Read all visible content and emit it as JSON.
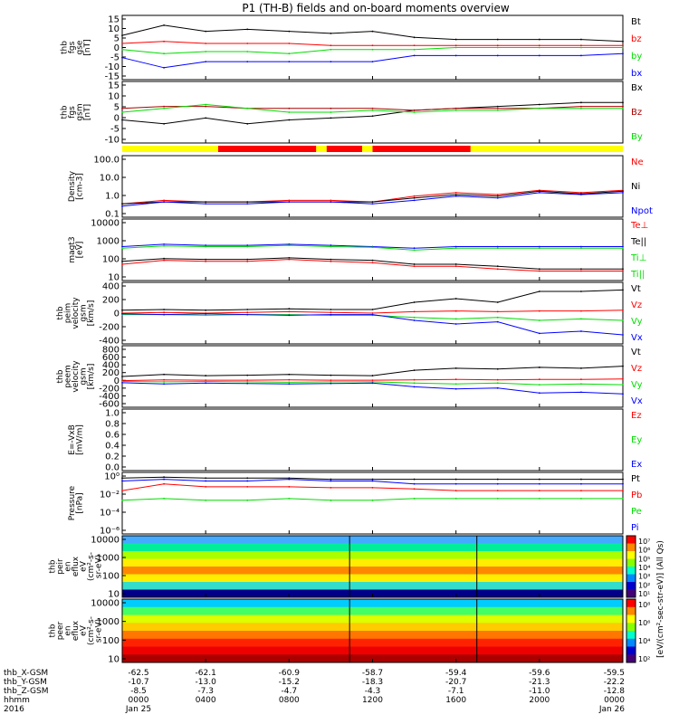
{
  "title": "P1 (TH-B) fields and on-board moments overview",
  "colors": {
    "black": "#000000",
    "red": "#ff0000",
    "green": "#00dd00",
    "blue": "#0000ff",
    "darkred": "#aa0000",
    "yellow": "#ffff00"
  },
  "chart_data": [
    {
      "type": "line",
      "id": "fgs_gse",
      "ylabel_lines": [
        "thb",
        "fgs",
        "gse",
        "[nT]"
      ],
      "yticks": [
        "15",
        "10",
        "5",
        "0",
        "-5",
        "-10",
        "-15"
      ],
      "ylim": [
        -15,
        15
      ],
      "legend": [
        {
          "label": "Bt",
          "color": "black"
        },
        {
          "label": "bz",
          "color": "red"
        },
        {
          "label": "by",
          "color": "green"
        },
        {
          "label": "bx",
          "color": "blue"
        }
      ],
      "x": [
        0,
        2,
        4,
        6,
        8,
        10,
        12,
        14,
        16,
        18,
        20,
        22,
        24
      ],
      "series": [
        {
          "color": "black",
          "values": [
            6,
            11,
            8,
            9,
            8,
            7,
            8,
            5,
            4,
            4,
            4,
            4,
            3
          ]
        },
        {
          "color": "red",
          "values": [
            2,
            3,
            2,
            2,
            2,
            1,
            1,
            1,
            1,
            1,
            1,
            1,
            1
          ]
        },
        {
          "color": "green",
          "values": [
            -1,
            -3,
            -2,
            -2,
            -3,
            -1,
            -1,
            -1,
            0,
            0,
            0,
            0,
            0
          ]
        },
        {
          "color": "blue",
          "values": [
            -5,
            -10,
            -7,
            -7,
            -7,
            -7,
            -7,
            -4,
            -4,
            -4,
            -4,
            -4,
            -3
          ]
        }
      ]
    },
    {
      "type": "line",
      "id": "fgs_gsm",
      "ylabel_lines": [
        "thb",
        "fgs",
        "gsm",
        "[nT]"
      ],
      "yticks": [
        "15",
        "10",
        "5",
        "0",
        "-5",
        "-10"
      ],
      "ylim": [
        -15,
        15
      ],
      "legend": [
        {
          "label": "Bx",
          "color": "black"
        },
        {
          "label": "Bz",
          "color": "darkred"
        },
        {
          "label": "By",
          "color": "green"
        }
      ],
      "x": [
        0,
        2,
        4,
        6,
        8,
        10,
        12,
        14,
        16,
        18,
        20,
        22,
        24
      ],
      "series": [
        {
          "color": "black",
          "values": [
            -4,
            -6,
            -3,
            -6,
            -4,
            -3,
            -2,
            1,
            2,
            3,
            4,
            5,
            5
          ]
        },
        {
          "color": "darkred",
          "values": [
            2,
            3,
            3,
            2,
            2,
            2,
            2,
            1,
            2,
            2,
            2,
            3,
            3
          ]
        },
        {
          "color": "green",
          "values": [
            0,
            2,
            4,
            2,
            0,
            0,
            1,
            0,
            1,
            1,
            2,
            2,
            2
          ]
        }
      ]
    },
    {
      "type": "bar",
      "id": "mode_bar",
      "segments": [
        {
          "from": 0,
          "to": 4.6,
          "color": "yellow"
        },
        {
          "from": 4.6,
          "to": 9.3,
          "color": "red"
        },
        {
          "from": 9.3,
          "to": 9.8,
          "color": "yellow"
        },
        {
          "from": 9.8,
          "to": 11.5,
          "color": "red"
        },
        {
          "from": 11.5,
          "to": 12.0,
          "color": "yellow"
        },
        {
          "from": 12.0,
          "to": 16.7,
          "color": "red"
        },
        {
          "from": 16.7,
          "to": 24,
          "color": "yellow"
        }
      ]
    },
    {
      "type": "line",
      "id": "density",
      "log": true,
      "ylabel_lines": [
        "Density",
        "[cm-3]"
      ],
      "yticks": [
        "100.0",
        "10.0",
        "1.0",
        "0.1"
      ],
      "ylim": [
        0.1,
        100
      ],
      "legend": [
        {
          "label": "Ne",
          "color": "red"
        },
        {
          "label": "Ni",
          "color": "black"
        },
        {
          "label": "Npot",
          "color": "blue"
        }
      ],
      "x": [
        0,
        2,
        4,
        6,
        8,
        10,
        12,
        14,
        16,
        18,
        20,
        22,
        24
      ],
      "series": [
        {
          "color": "red",
          "values": [
            0.4,
            0.6,
            0.5,
            0.5,
            0.6,
            0.6,
            0.5,
            1.0,
            1.5,
            1.2,
            2.0,
            1.5,
            2.0
          ]
        },
        {
          "color": "black",
          "values": [
            0.4,
            0.5,
            0.5,
            0.5,
            0.5,
            0.5,
            0.5,
            0.8,
            1.2,
            1.0,
            1.8,
            1.3,
            1.8
          ]
        },
        {
          "color": "blue",
          "values": [
            0.3,
            0.5,
            0.4,
            0.4,
            0.5,
            0.5,
            0.4,
            0.6,
            1.0,
            0.8,
            1.5,
            1.2,
            1.5
          ]
        }
      ]
    },
    {
      "type": "line",
      "id": "temp",
      "log": true,
      "ylabel_lines": [
        "magt3",
        "[eV]"
      ],
      "yticks": [
        "10000",
        "1000",
        "100",
        "10"
      ],
      "ylim": [
        5,
        20000
      ],
      "legend": [
        {
          "label": "Te⊥",
          "color": "red"
        },
        {
          "label": "Te||",
          "color": "black"
        },
        {
          "label": "Ti⊥",
          "color": "green"
        },
        {
          "label": "Ti||",
          "color": "green"
        }
      ],
      "x": [
        0,
        2,
        4,
        6,
        8,
        10,
        12,
        14,
        16,
        18,
        20,
        22,
        24
      ],
      "series": [
        {
          "color": "blue",
          "values": [
            500,
            700,
            600,
            600,
            700,
            600,
            500,
            400,
            500,
            500,
            500,
            500,
            500
          ]
        },
        {
          "color": "green",
          "values": [
            400,
            550,
            500,
            500,
            600,
            500,
            450,
            300,
            400,
            400,
            400,
            400,
            400
          ]
        },
        {
          "color": "black",
          "values": [
            60,
            90,
            80,
            80,
            100,
            80,
            70,
            40,
            40,
            30,
            20,
            20,
            20
          ]
        },
        {
          "color": "red",
          "values": [
            40,
            70,
            60,
            60,
            80,
            60,
            50,
            30,
            30,
            20,
            15,
            15,
            15
          ]
        }
      ]
    },
    {
      "type": "line",
      "id": "peim_vel",
      "ylabel_lines": [
        "thb",
        "peim",
        "velocity",
        "gsm",
        "[km/s]"
      ],
      "yticks": [
        "400",
        "200",
        "0",
        "-200",
        "-400"
      ],
      "ylim": [
        -400,
        400
      ],
      "legend": [
        {
          "label": "Vt",
          "color": "black"
        },
        {
          "label": "Vz",
          "color": "red"
        },
        {
          "label": "Vy",
          "color": "green"
        },
        {
          "label": "Vx",
          "color": "blue"
        }
      ],
      "x": [
        0,
        2,
        4,
        6,
        8,
        10,
        12,
        14,
        16,
        18,
        20,
        22,
        24
      ],
      "series": [
        {
          "color": "black",
          "values": [
            40,
            50,
            40,
            50,
            60,
            50,
            50,
            150,
            200,
            150,
            300,
            300,
            320
          ]
        },
        {
          "color": "red",
          "values": [
            0,
            10,
            0,
            10,
            20,
            10,
            0,
            20,
            30,
            20,
            30,
            30,
            40
          ]
        },
        {
          "color": "green",
          "values": [
            -20,
            -20,
            -30,
            -20,
            -20,
            -30,
            -30,
            -60,
            -80,
            -60,
            -100,
            -80,
            -100
          ]
        },
        {
          "color": "blue",
          "values": [
            -10,
            -20,
            -10,
            -20,
            -30,
            -20,
            -20,
            -100,
            -150,
            -120,
            -280,
            -250,
            -300
          ]
        }
      ]
    },
    {
      "type": "line",
      "id": "peem_vel",
      "ylabel_lines": [
        "thb",
        "peem",
        "velocity",
        "gsm",
        "[km/s]"
      ],
      "yticks": [
        "800",
        "600",
        "400",
        "200",
        "0",
        "-200",
        "-400",
        "-600"
      ],
      "ylim": [
        -600,
        800
      ],
      "legend": [
        {
          "label": "Vt",
          "color": "black"
        },
        {
          "label": "Vz",
          "color": "red"
        },
        {
          "label": "Vy",
          "color": "green"
        },
        {
          "label": "Vx",
          "color": "blue"
        }
      ],
      "x": [
        0,
        2,
        4,
        6,
        8,
        10,
        12,
        14,
        16,
        18,
        20,
        22,
        24
      ],
      "series": [
        {
          "color": "black",
          "values": [
            100,
            150,
            120,
            130,
            150,
            130,
            120,
            250,
            300,
            280,
            320,
            300,
            350
          ]
        },
        {
          "color": "red",
          "values": [
            0,
            20,
            10,
            10,
            20,
            10,
            10,
            20,
            30,
            20,
            30,
            30,
            40
          ]
        },
        {
          "color": "green",
          "values": [
            -20,
            -30,
            -20,
            -30,
            -40,
            -30,
            -30,
            -60,
            -80,
            -60,
            -100,
            -80,
            -100
          ]
        },
        {
          "color": "blue",
          "values": [
            -50,
            -80,
            -60,
            -70,
            -80,
            -70,
            -60,
            -150,
            -200,
            -180,
            -300,
            -280,
            -320
          ]
        }
      ]
    },
    {
      "type": "line",
      "id": "efield",
      "ylabel_lines": [
        "E=-VxB",
        "[mV/m]"
      ],
      "yticks": [
        "1.0",
        "0.8",
        "0.6",
        "0.4",
        "0.2",
        "0.0"
      ],
      "ylim": [
        0,
        1
      ],
      "legend": [
        {
          "label": "Ez",
          "color": "red"
        },
        {
          "label": "Ey",
          "color": "green"
        },
        {
          "label": "Ex",
          "color": "blue"
        }
      ],
      "x": [],
      "series": []
    },
    {
      "type": "line",
      "id": "pressure",
      "log": true,
      "ylabel_lines": [
        "Pressure",
        "[nPa]"
      ],
      "yticks": [
        "10⁰",
        "10⁻²",
        "10⁻⁴",
        "10⁻⁶"
      ],
      "ylim": [
        1e-06,
        1
      ],
      "legend": [
        {
          "label": "Pt",
          "color": "black"
        },
        {
          "label": "Pb",
          "color": "red"
        },
        {
          "label": "Pe",
          "color": "green"
        },
        {
          "label": "Pi",
          "color": "blue"
        }
      ],
      "x": [
        0,
        2,
        4,
        6,
        8,
        10,
        12,
        14,
        16,
        18,
        20,
        22,
        24
      ],
      "series": [
        {
          "color": "black",
          "values": [
            0.4,
            0.5,
            0.4,
            0.4,
            0.4,
            0.3,
            0.3,
            0.3,
            0.3,
            0.3,
            0.3,
            0.3,
            0.3
          ]
        },
        {
          "color": "blue",
          "values": [
            0.2,
            0.3,
            0.2,
            0.2,
            0.3,
            0.2,
            0.2,
            0.1,
            0.1,
            0.1,
            0.1,
            0.1,
            0.1
          ]
        },
        {
          "color": "red",
          "values": [
            0.02,
            0.1,
            0.05,
            0.05,
            0.05,
            0.04,
            0.04,
            0.03,
            0.02,
            0.02,
            0.02,
            0.02,
            0.02
          ]
        },
        {
          "color": "green",
          "values": [
            0.002,
            0.003,
            0.002,
            0.002,
            0.003,
            0.002,
            0.002,
            0.003,
            0.003,
            0.003,
            0.003,
            0.003,
            0.003
          ]
        }
      ]
    },
    {
      "type": "heatmap",
      "id": "peir",
      "ylabel_lines": [
        "thb",
        "peir",
        "en",
        "eflux",
        "eV",
        "(cm²-s-",
        "sr-eV)"
      ],
      "yticks": [
        "10000",
        "1000",
        "100",
        "10"
      ],
      "colorbar_label": "[eV/(cm²-sec-str-eV)] (All Qs)",
      "colorbar_ticks": [
        "10⁷",
        "10⁶",
        "10⁵",
        "10⁴",
        "10³",
        "10²",
        "10¹"
      ]
    },
    {
      "type": "heatmap",
      "id": "peer",
      "ylabel_lines": [
        "thb",
        "peer",
        "en",
        "eflux",
        "eV",
        "(cm²-s-",
        "sr-eV)"
      ],
      "yticks": [
        "10000",
        "1000",
        "100",
        "10"
      ],
      "colorbar_ticks": [
        "10⁸",
        "10⁶",
        "10⁴",
        "10²"
      ]
    }
  ],
  "ephemeris": {
    "rows": [
      {
        "label": "thb_X-GSM",
        "values": [
          "-62.5",
          "-62.1",
          "-60.9",
          "-58.7",
          "-59.4",
          "-59.6",
          "-59.5"
        ]
      },
      {
        "label": "thb_Y-GSM",
        "values": [
          "-10.7",
          "-13.0",
          "-15.2",
          "-18.3",
          "-20.7",
          "-21.3",
          "-22.2"
        ]
      },
      {
        "label": "thb_Z-GSM",
        "values": [
          "-8.5",
          "-7.3",
          "-4.7",
          "-4.3",
          "-7.1",
          "-11.0",
          "-12.8"
        ]
      },
      {
        "label": "hhmm",
        "values": [
          "0000",
          "0400",
          "0800",
          "1200",
          "1600",
          "2000",
          "0000"
        ]
      },
      {
        "label": "2016",
        "values": [
          "Jan 25",
          "",
          "",
          "",
          "",
          "",
          "Jan 26"
        ]
      }
    ]
  }
}
